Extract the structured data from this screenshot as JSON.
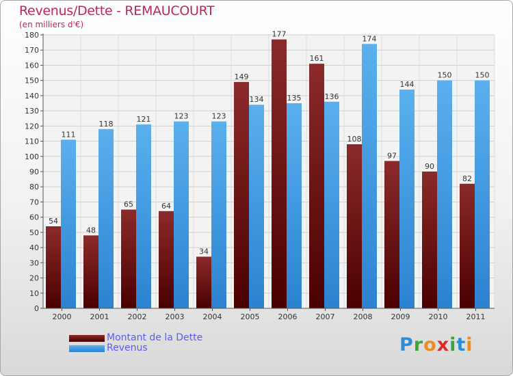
{
  "chart_data": {
    "type": "bar",
    "title": "Revenus/Dette - REMAUCOURT",
    "subtitle": "(en milliers d'€)",
    "categories": [
      "2000",
      "2001",
      "2002",
      "2003",
      "2004",
      "2005",
      "2006",
      "2007",
      "2008",
      "2009",
      "2010",
      "2011"
    ],
    "series": [
      {
        "name": "Montant de la Dette",
        "color": "#7a1515",
        "values": [
          54,
          48,
          65,
          64,
          34,
          149,
          177,
          161,
          108,
          97,
          90,
          82
        ]
      },
      {
        "name": "Revenus",
        "color": "#4fa3e6",
        "values": [
          111,
          118,
          121,
          123,
          123,
          134,
          135,
          136,
          174,
          144,
          150,
          150
        ]
      }
    ],
    "ylim": [
      0,
      180
    ],
    "yticks": [
      0,
      10,
      20,
      30,
      40,
      50,
      60,
      70,
      80,
      90,
      100,
      110,
      120,
      130,
      140,
      150,
      160,
      170,
      180
    ],
    "grid": true,
    "legend_position": "bottom-left"
  },
  "brand": {
    "letters": [
      {
        "char": "P",
        "color": "#2e8bd6"
      },
      {
        "char": "r",
        "color": "#3aa63a"
      },
      {
        "char": "o",
        "color": "#f08a1c"
      },
      {
        "char": "x",
        "color": "#d92a2a"
      },
      {
        "char": "i",
        "color": "#3aa63a"
      },
      {
        "char": "t",
        "color": "#2e8bd6"
      },
      {
        "char": "i",
        "color": "#f08a1c"
      }
    ]
  }
}
